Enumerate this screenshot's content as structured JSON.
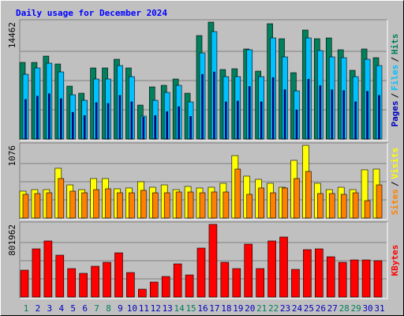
{
  "chart_data": {
    "type": "bar",
    "title": "Daily usage for December 2024",
    "legend_separator": "/",
    "categories": [
      "1",
      "2",
      "3",
      "4",
      "5",
      "6",
      "7",
      "8",
      "9",
      "10",
      "11",
      "12",
      "13",
      "14",
      "15",
      "16",
      "17",
      "18",
      "19",
      "20",
      "21",
      "22",
      "23",
      "24",
      "25",
      "26",
      "27",
      "28",
      "29",
      "30",
      "31"
    ],
    "category_colors": [
      "#00805C",
      "#0000C0",
      "#0000C0",
      "#0000C0",
      "#0000C0",
      "#0000C0",
      "#00805C",
      "#00805C",
      "#0000C0",
      "#0000C0",
      "#0000C0",
      "#0000C0",
      "#0000C0",
      "#00805C",
      "#00805C",
      "#0000C0",
      "#0000C0",
      "#0000C0",
      "#0000C0",
      "#0000C0",
      "#00805C",
      "#00805C",
      "#0000C0",
      "#0000C0",
      "#0000C0",
      "#0000C0",
      "#0000C0",
      "#00805C",
      "#00805C",
      "#0000C0",
      "#0000C0"
    ],
    "panels": [
      {
        "ylim": [
          0,
          14462
        ],
        "yticks": [
          14462
        ],
        "series": [
          {
            "name": "Hits",
            "color": "#00805C",
            "values": [
              9477,
              9477,
              10259,
              9282,
              6546,
              5667,
              8794,
              8794,
              9868,
              8794,
              4201,
              6449,
              6644,
              7426,
              5667,
              12800,
              14462,
              8598,
              8696,
              11139,
              8403,
              14265,
              12409,
              8207,
              13483,
              12409,
              12506,
              11041,
              8500,
              11139,
              10064
            ]
          },
          {
            "name": "Files",
            "color": "#00C0FF",
            "values": [
              8012,
              8794,
              9380,
              8305,
              5472,
              4788,
              7426,
              7426,
              9087,
              7719,
              2834,
              4788,
              5765,
              6644,
              4592,
              10650,
              13288,
              7719,
              7719,
              11041,
              7719,
              12506,
              10162,
              5960,
              12506,
              10943,
              10162,
              10064,
              7719,
              9868,
              9087
            ]
          },
          {
            "name": "Pages",
            "color": "#0000C0",
            "values": [
              4900,
              5300,
              5600,
              5000,
              3300,
              2900,
              4500,
              4400,
              5400,
              4600,
              2700,
              2900,
              3400,
              4000,
              2800,
              8000,
              8300,
              4600,
              4700,
              6500,
              4600,
              7600,
              6100,
              3600,
              7400,
              6600,
              6100,
              6000,
              4600,
              5900,
              5400
            ]
          }
        ]
      },
      {
        "ylim": [
          0,
          1076
        ],
        "yticks": [
          1076
        ],
        "series": [
          {
            "name": "Visits",
            "color": "#FFFF00",
            "values": [
              398,
              421,
              421,
              737,
              491,
              421,
              585,
              585,
              433,
              445,
              538,
              456,
              491,
              421,
              468,
              445,
              456,
              515,
              924,
              620,
              573,
              515,
              456,
              854,
              1076,
              515,
              421,
              456,
              421,
              714,
              725
            ]
          },
          {
            "name": "Sites",
            "color": "#FF8000",
            "values": [
              351,
              363,
              374,
              585,
              398,
              374,
              421,
              433,
              374,
              374,
              410,
              374,
              374,
              386,
              386,
              374,
              386,
              386,
              725,
              351,
              445,
              374,
              445,
              585,
              690,
              363,
              363,
              351,
              374,
              257,
              491
            ]
          }
        ]
      },
      {
        "ylim": [
          0,
          801962
        ],
        "yticks": [
          801962
        ],
        "series": [
          {
            "name": "KBytes",
            "color": "#FF0000",
            "values": [
              296378,
              531737,
              618907,
              462001,
              313812,
              261510,
              339963,
              383548,
              488152,
              270227,
              87170,
              165623,
              226642,
              366114,
              244076,
              540454,
              801962,
              383548,
              313812,
              584039,
              313812,
              618907,
              662492,
              305095,
              523020,
              531737,
              444567,
              383548,
              409699,
              409699,
              400982
            ]
          }
        ]
      }
    ]
  }
}
